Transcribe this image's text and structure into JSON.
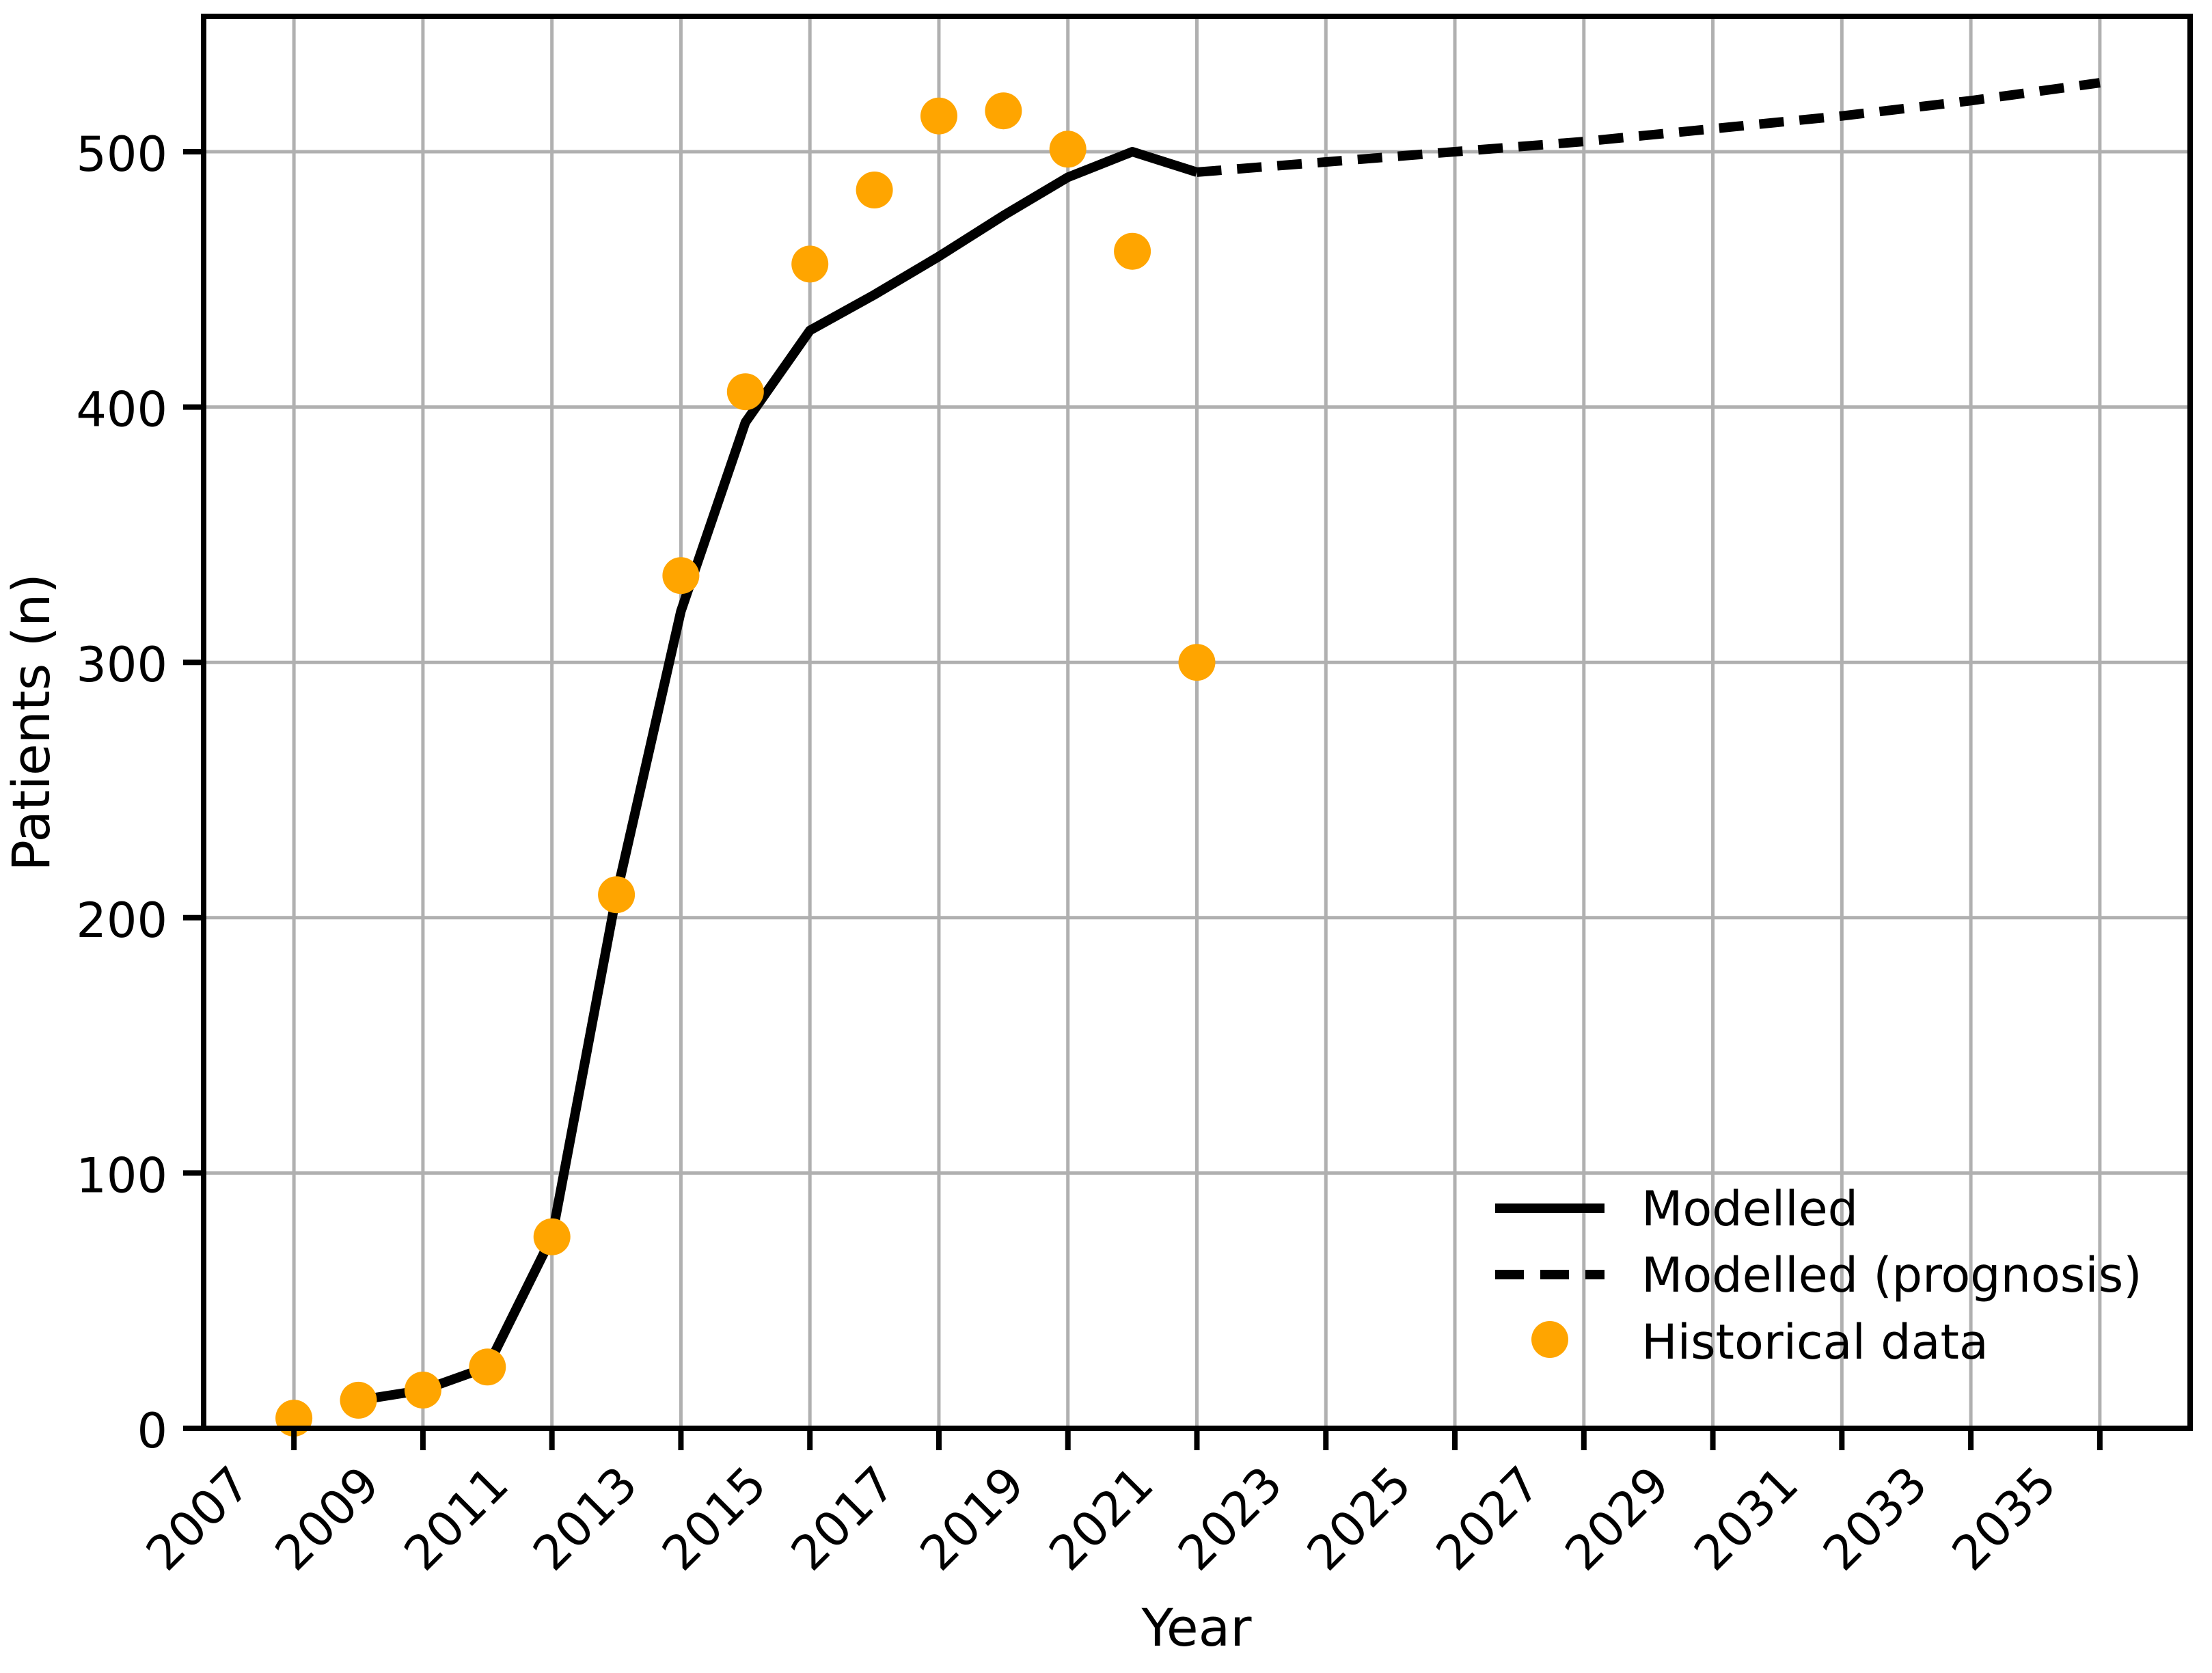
{
  "page": {
    "background_color": "#ffffff"
  },
  "chart_data": {
    "type": "line",
    "title": "",
    "xlabel": "Year",
    "ylabel": "Patients (n)",
    "x_ticks": [
      2007,
      2009,
      2011,
      2013,
      2015,
      2017,
      2019,
      2021,
      2023,
      2025,
      2027,
      2029,
      2031,
      2033,
      2035
    ],
    "x_tick_labels": [
      "2007",
      "2009",
      "2011",
      "2013",
      "2015",
      "2017",
      "2019",
      "2021",
      "2023",
      "2025",
      "2027",
      "2029",
      "2031",
      "2033",
      "2035"
    ],
    "y_ticks": [
      0,
      100,
      200,
      300,
      400,
      500
    ],
    "y_tick_labels": [
      "0",
      "100",
      "200",
      "300",
      "400",
      "500"
    ],
    "xlim": [
      2005.6,
      2036.4
    ],
    "ylim": [
      0,
      553
    ],
    "grid": true,
    "grid_color": "#b0b0b0",
    "background_color": "#ffffff",
    "legend_position": "lower right",
    "legend_frame": false,
    "series": [
      {
        "name": "Modelled",
        "type": "line",
        "line_style": "solid",
        "color": "#000000",
        "line_width": 14,
        "x": [
          2008,
          2009,
          2010,
          2011,
          2012,
          2013,
          2014,
          2015,
          2016,
          2017,
          2018,
          2019,
          2020,
          2021
        ],
        "y": [
          11,
          15,
          24,
          75,
          209,
          320,
          394,
          430,
          444,
          459,
          475,
          490,
          500,
          492
        ]
      },
      {
        "name": "Modelled (prognosis)",
        "type": "line",
        "line_style": "dashed",
        "color": "#000000",
        "line_width": 14,
        "x": [
          2021,
          2022,
          2023,
          2024,
          2025,
          2026,
          2027,
          2028,
          2029,
          2030,
          2031,
          2032,
          2033,
          2034,
          2035
        ],
        "y": [
          492,
          494,
          496,
          498,
          500,
          502,
          504,
          506.5,
          509,
          511.5,
          514,
          517,
          520,
          523.5,
          527
        ]
      },
      {
        "name": "Historical data",
        "type": "scatter",
        "color": "#ffa500",
        "marker_radius": 27,
        "x": [
          2007,
          2008,
          2009,
          2010,
          2011,
          2012,
          2013,
          2014,
          2015,
          2016,
          2017,
          2018,
          2019,
          2020,
          2021
        ],
        "y": [
          4,
          11,
          15,
          24,
          75,
          209,
          334,
          406,
          456,
          485,
          514,
          516,
          501,
          461,
          300
        ]
      }
    ]
  }
}
